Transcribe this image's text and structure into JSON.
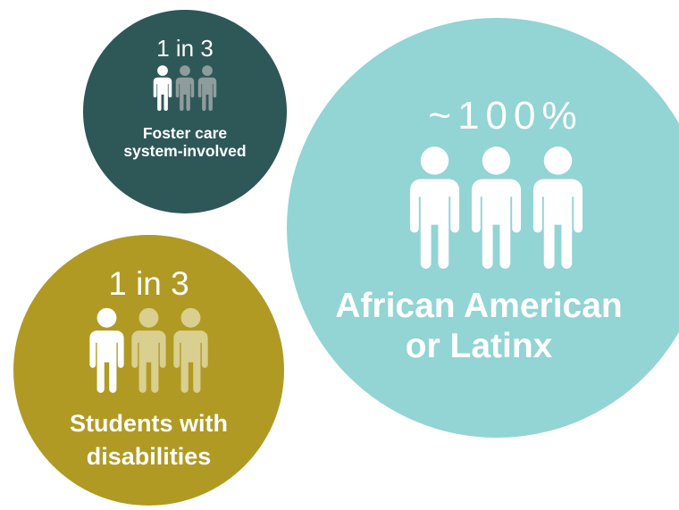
{
  "bubbles": {
    "foster": {
      "stat": "1 in 3",
      "label_line1": "Foster care",
      "label_line2": "system-involved",
      "color": "#2e5758",
      "highlight_icon_color": "#ffffff",
      "muted_icon_color": "#8e9c9c"
    },
    "race": {
      "stat": "~100%",
      "label_line1": "African American",
      "label_line2": "or Latinx",
      "color": "#93d4d4",
      "highlight_icon_color": "#ffffff"
    },
    "disabilities": {
      "stat": "1 in 3",
      "label_line1": "Students with",
      "label_line2": "disabilities",
      "color": "#b09a23",
      "highlight_icon_color": "#ffffff",
      "muted_icon_color": "#d9cf8f"
    }
  },
  "icons": [
    "person-icon"
  ]
}
